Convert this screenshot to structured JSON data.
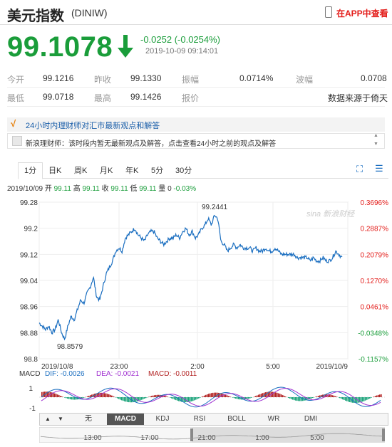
{
  "header": {
    "title": "美元指数",
    "code": "(DINIW)",
    "app_link": "在APP中查看"
  },
  "quote": {
    "price": "99.1078",
    "change": "-0.0252 (-0.0254%)",
    "datetime": "2019-10-09 09:14:01"
  },
  "info": {
    "row1": [
      {
        "label": "今开",
        "value": "99.1216"
      },
      {
        "label": "昨收",
        "value": "99.1330"
      },
      {
        "label": "振幅",
        "value": "0.0714%"
      },
      {
        "label": "波幅",
        "value": "0.0708"
      }
    ],
    "row2": [
      {
        "label": "最低",
        "value": "99.0718"
      },
      {
        "label": "最高",
        "value": "99.1426"
      },
      {
        "label": "报价",
        "value": ""
      },
      {
        "label": "",
        "value": "数据来源于倚天"
      }
    ]
  },
  "notice": {
    "title": "24小时内理财师对汇市最新观点和解答",
    "message": "新浪理财师：该时段内暂无最新观点及解答，点击查看24小时之前的观点及解答"
  },
  "tabs": [
    "1分",
    "日K",
    "周K",
    "月K",
    "年K",
    "5分",
    "30分"
  ],
  "ohlc": {
    "date": "2019/10/09",
    "open_label": "开",
    "open": "99.11",
    "high_label": "高",
    "high": "99.11",
    "close_label": "收",
    "close": "99.11",
    "low_label": "低",
    "low": "99.11",
    "vol_label": "量",
    "vol": "0",
    "pct": "-0.03%"
  },
  "chart_data": {
    "type": "line",
    "y_ticks": [
      "99.28",
      "99.2",
      "99.12",
      "99.04",
      "98.96",
      "98.88",
      "98.8"
    ],
    "pct_ticks": [
      "0.3696%",
      "0.2887%",
      "0.2079%",
      "0.1270%",
      "0.0461%",
      "-0.0348%",
      "-0.1157%"
    ],
    "x_ticks": [
      "2019/10/8",
      "23:00",
      "2:00",
      "5:00",
      "2019/10/9"
    ],
    "ylim": [
      98.8,
      99.28
    ],
    "max_label": "99.2441",
    "min_label": "98.8579",
    "watermark": "sina 新浪财经",
    "series": [
      {
        "values": [
          98.91,
          98.9,
          98.89,
          98.9,
          98.88,
          98.89,
          98.92,
          98.88,
          98.86,
          98.9,
          98.93,
          98.92,
          98.95,
          98.98,
          98.97,
          99.0,
          99.02,
          99.05,
          98.99,
          98.98,
          99.02,
          99.06,
          99.08,
          99.1,
          99.13,
          99.14,
          99.13,
          99.17,
          99.18,
          99.19,
          99.2,
          99.18,
          99.17,
          99.16,
          99.18,
          99.19,
          99.19,
          99.17,
          99.16,
          99.15,
          99.16,
          99.17,
          99.17,
          99.18,
          99.17,
          99.19,
          99.2,
          99.18,
          99.19,
          99.17,
          99.18,
          99.2,
          99.21,
          99.23,
          99.21,
          99.24,
          99.23,
          99.16,
          99.15,
          99.13,
          99.14,
          99.15,
          99.14,
          99.15,
          99.14,
          99.14,
          99.14,
          99.13,
          99.14,
          99.13,
          99.13,
          99.14,
          99.13,
          99.13,
          99.14,
          99.13,
          99.12,
          99.12,
          99.12,
          99.12,
          99.12,
          99.11,
          99.11,
          99.11,
          99.11,
          99.1,
          99.11,
          99.1,
          99.1,
          99.11,
          99.1,
          99.1,
          99.11,
          99.13,
          99.12,
          99.11
        ]
      }
    ]
  },
  "macd": {
    "label": "MACD",
    "dif_label": "DIF: -0.0026",
    "dea_label": "DEA: -0.0021",
    "macd_label": "MACD: -0.0011",
    "y_ticks": [
      "1",
      "-1"
    ],
    "colors": {
      "dif": "#1a6ec0",
      "dea": "#a030d0",
      "up": "#b22222",
      "down": "#1aa37a"
    }
  },
  "indicator_tabs": [
    "无",
    "MACD",
    "KDJ",
    "RSI",
    "BOLL",
    "WR",
    "DMI"
  ],
  "nav": {
    "prev": "▲",
    "next": "▼"
  },
  "overview_ticks": [
    "13:00",
    "17:00",
    "21:00",
    "1:00",
    "5:00"
  ]
}
